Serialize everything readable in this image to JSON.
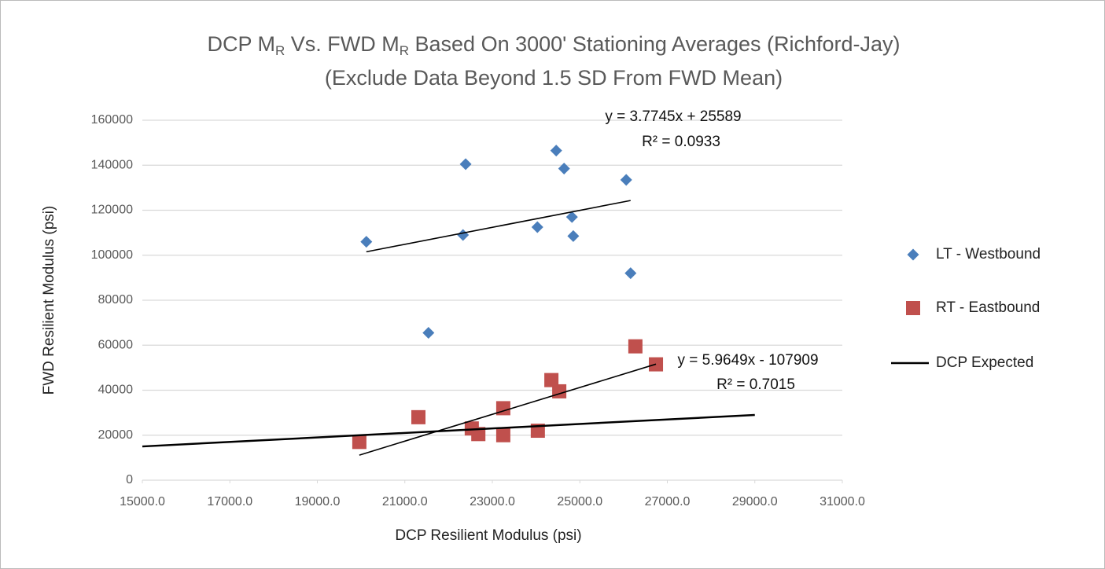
{
  "chart_data": {
    "type": "scatter",
    "title": [
      {
        "text": "DCP M"
      },
      {
        "text": "R",
        "sub": true
      },
      {
        "text": "  Vs. FWD M"
      },
      {
        "text": "R",
        "sub": true
      },
      {
        "text": " Based On 3000' Stationing Averages (Richford-Jay)"
      }
    ],
    "subtitle": "(Exclude Data Beyond 1.5 SD From FWD Mean)",
    "x_label": "DCP Resilient Modulus (psi)",
    "y_label": "FWD Resilient Modulus (psi)",
    "xlim": [
      15000,
      31000
    ],
    "xticks": [
      {
        "value": 15000,
        "label": "15000.0"
      },
      {
        "value": 17000,
        "label": "17000.0"
      },
      {
        "value": 19000,
        "label": "19000.0"
      },
      {
        "value": 21000,
        "label": "21000.0"
      },
      {
        "value": 23000,
        "label": "23000.0"
      },
      {
        "value": 25000,
        "label": "25000.0"
      },
      {
        "value": 27000,
        "label": "27000.0"
      },
      {
        "value": 29000,
        "label": "29000.0"
      },
      {
        "value": 31000,
        "label": "31000.0"
      }
    ],
    "ylim": [
      0,
      160000
    ],
    "yticks": [
      0,
      20000,
      40000,
      60000,
      80000,
      100000,
      120000,
      140000,
      160000
    ],
    "grid": true,
    "legend": "right",
    "series": [
      {
        "name": "LT - Westbound",
        "color": "#4a7ebb",
        "marker": "diamond",
        "x": [
          20120,
          22390,
          22330,
          21540,
          24460,
          24640,
          24030,
          24820,
          24850,
          26060,
          26160
        ],
        "values": [
          106000,
          140500,
          109000,
          65500,
          146500,
          138500,
          112500,
          117000,
          108500,
          133500,
          92000
        ]
      },
      {
        "name": "RT - Eastbound",
        "color": "#c0504d",
        "marker": "square",
        "x": [
          19960,
          21310,
          22530,
          22680,
          23250,
          23250,
          24040,
          24350,
          24530,
          26270,
          26740
        ],
        "values": [
          17000,
          28000,
          23000,
          20500,
          32000,
          20000,
          22000,
          44500,
          39500,
          59500,
          51500
        ]
      },
      {
        "name": "DCP Expected",
        "color": "#000000",
        "marker": "line",
        "x": [
          15000,
          29000
        ],
        "values": [
          15000,
          29000
        ]
      }
    ],
    "trendlines": [
      {
        "series": 0,
        "slope": 3.7745,
        "intercept": 25589,
        "equation": "y = 3.7745x + 25589",
        "r2": "R² = 0.0933"
      },
      {
        "series": 1,
        "slope": 5.9649,
        "intercept": -107909,
        "equation": "y = 5.9649x - 107909",
        "r2": "R² = 0.7015"
      }
    ]
  }
}
